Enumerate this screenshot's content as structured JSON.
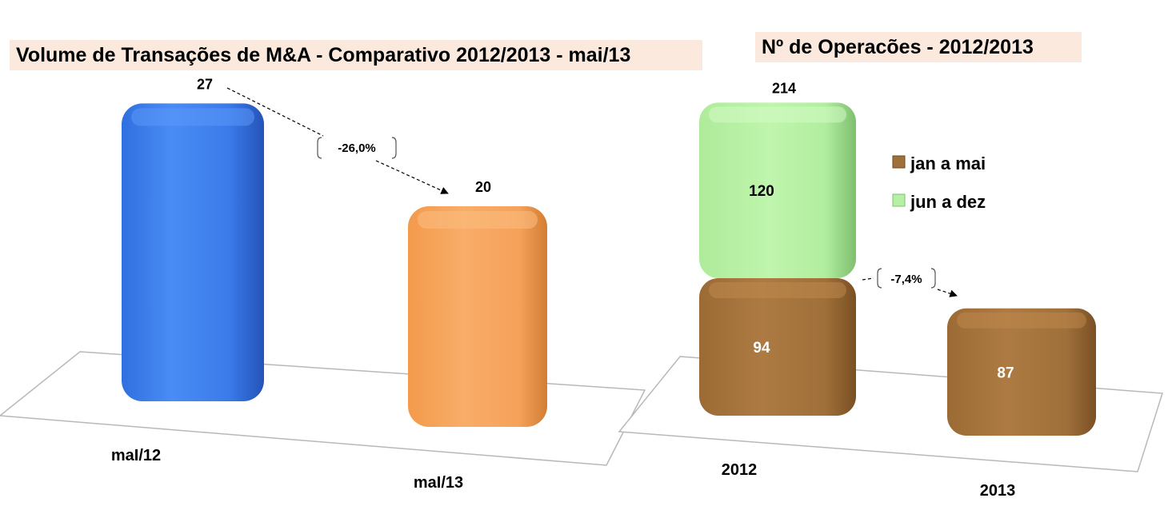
{
  "chart_data": [
    {
      "type": "bar",
      "title": "Volume de Transações de M&A - Comparativo 2012/2013  -  mai/13",
      "categories": [
        "maI/12",
        "maI/13"
      ],
      "values": [
        27,
        20
      ],
      "value_labels": [
        "27",
        "20"
      ],
      "change_label": "-26,0%",
      "ylim": [
        0,
        30
      ],
      "colors": [
        "#3b7ded",
        "#f6a35a"
      ],
      "grid": false
    },
    {
      "type": "bar",
      "stacked": true,
      "title": "Nº de Operacões  - 2012/2013",
      "categories": [
        "2012",
        "2013"
      ],
      "series": [
        {
          "name": "jan a mai",
          "values": [
            94,
            87
          ],
          "value_labels": [
            "94",
            "87"
          ],
          "color": "#a0703a"
        },
        {
          "name": "jun a dez",
          "values": [
            120,
            null
          ],
          "value_labels": [
            "120",
            ""
          ],
          "color": "#b5f0a4"
        }
      ],
      "totals": [
        214,
        null
      ],
      "total_labels": [
        "214",
        ""
      ],
      "change_label": "-7,4%",
      "legend_position": "right",
      "grid": false
    }
  ]
}
